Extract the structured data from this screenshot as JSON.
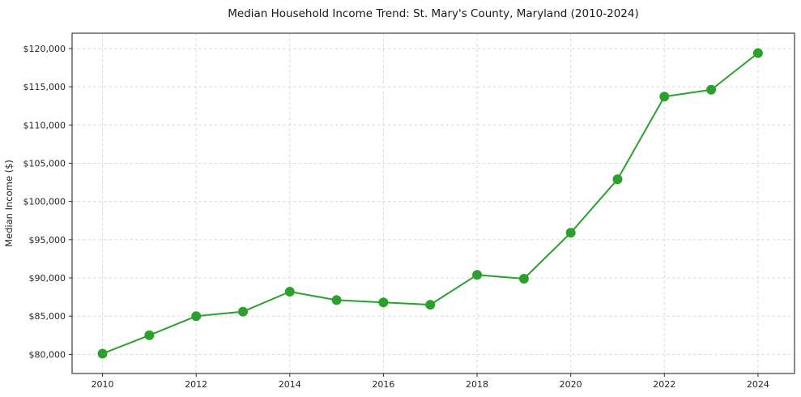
{
  "chart_data": {
    "type": "line",
    "title": "Median Household Income Trend: St. Mary's County, Maryland (2010-2024)",
    "xlabel": "",
    "ylabel": "Median Income ($)",
    "x": [
      2010,
      2011,
      2012,
      2013,
      2014,
      2015,
      2016,
      2017,
      2018,
      2019,
      2020,
      2021,
      2022,
      2023,
      2024
    ],
    "series": [
      {
        "name": "Median Household Income",
        "values": [
          80100,
          82500,
          85000,
          85600,
          88200,
          87100,
          86800,
          86500,
          90400,
          89900,
          95900,
          102900,
          113700,
          114600,
          119400
        ]
      }
    ],
    "xlim": [
      2009.35,
      2024.78
    ],
    "ylim": [
      77500,
      122000
    ],
    "x_ticks": [
      2010,
      2012,
      2014,
      2016,
      2018,
      2020,
      2022,
      2024
    ],
    "x_tick_labels": [
      "2010",
      "2012",
      "2014",
      "2016",
      "2018",
      "2020",
      "2022",
      "2024"
    ],
    "y_ticks": [
      80000,
      85000,
      90000,
      95000,
      100000,
      105000,
      110000,
      115000,
      120000
    ],
    "y_tick_labels": [
      "$80,000",
      "$85,000",
      "$90,000",
      "$95,000",
      "$100,000",
      "$105,000",
      "$110,000",
      "$115,000",
      "$120,000"
    ],
    "grid": true,
    "legend_position": "none",
    "colors": {
      "line": "#2ca02c",
      "marker": "#2ca02c",
      "grid": "#d9d9d9",
      "frame": "#2b2b2b",
      "background": "#ffffff"
    }
  }
}
